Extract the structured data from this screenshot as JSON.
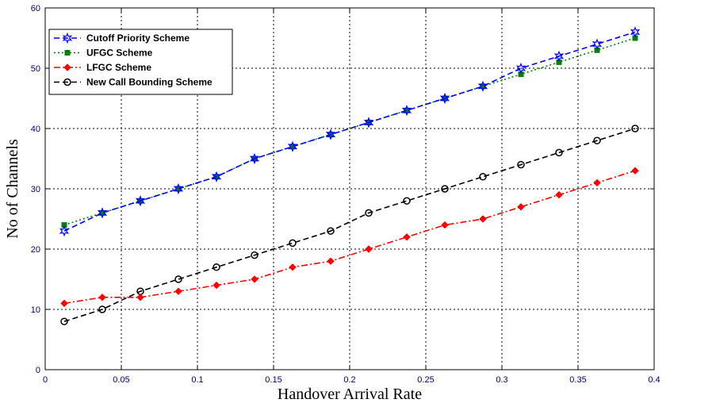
{
  "chart_data": {
    "type": "line",
    "xlabel": "Handover Arrival Rate",
    "ylabel": "No of Channels",
    "xlim": [
      0,
      0.4
    ],
    "ylim": [
      0,
      60
    ],
    "x_ticks": [
      0,
      0.05,
      0.1,
      0.15,
      0.2,
      0.25,
      0.3,
      0.35,
      0.4
    ],
    "x_tick_labels": [
      "0",
      "0.05",
      "0.1",
      "0.15",
      "0.2",
      "0.25",
      "0.3",
      "0.35",
      "0.4"
    ],
    "y_ticks": [
      0,
      10,
      20,
      30,
      40,
      50,
      60
    ],
    "y_tick_labels": [
      "0",
      "10",
      "20",
      "30",
      "40",
      "50",
      "60"
    ],
    "grid": true,
    "legend_position": "top-left",
    "x": [
      0.0125,
      0.0375,
      0.0625,
      0.0875,
      0.1125,
      0.1375,
      0.1625,
      0.1875,
      0.2125,
      0.2375,
      0.2625,
      0.2875,
      0.3125,
      0.3375,
      0.3625,
      0.3875
    ],
    "series": [
      {
        "name": "Cutoff Priority Scheme",
        "color": "#0000ff",
        "dash": "dash",
        "marker": "hexagram",
        "values": [
          23,
          26,
          28,
          30,
          32,
          35,
          37,
          39,
          41,
          43,
          45,
          47,
          50,
          52,
          54,
          56
        ]
      },
      {
        "name": "UFGC Scheme",
        "color": "#008000",
        "dash": "dot",
        "marker": "square",
        "values": [
          24,
          26,
          28,
          30,
          32,
          35,
          37,
          39,
          41,
          43,
          45,
          47,
          49,
          51,
          53,
          55
        ]
      },
      {
        "name": "LFGC Scheme",
        "color": "#ff0000",
        "dash": "dashdot",
        "marker": "diamond",
        "values": [
          11,
          12,
          12,
          13,
          14,
          15,
          17,
          18,
          20,
          22,
          24,
          25,
          27,
          29,
          31,
          33
        ]
      },
      {
        "name": "New Call Bounding Scheme",
        "color": "#000000",
        "dash": "dash",
        "marker": "circle",
        "values": [
          8,
          10,
          13,
          15,
          17,
          19,
          21,
          23,
          26,
          28,
          30,
          32,
          34,
          36,
          38,
          40
        ]
      }
    ]
  }
}
